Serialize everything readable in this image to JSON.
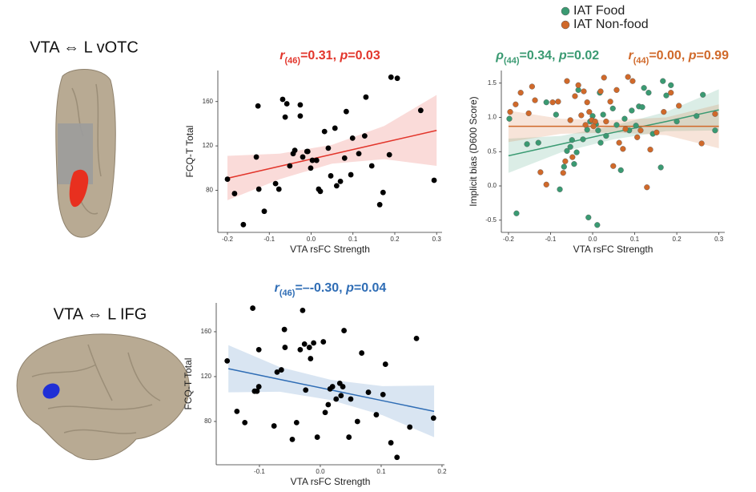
{
  "row_labels": [
    "VTA ⇔ L vOTC",
    "VTA ⇔ L IFG"
  ],
  "chart_data": [
    {
      "type": "scatter",
      "titles": [
        {
          "color": "#e2352b",
          "parts": [
            "r",
            "(46)",
            "=0.31, ",
            "p",
            "=0.03"
          ]
        }
      ],
      "x_label": "VTA rsFC Strength",
      "y_label": "FCQ-T Total",
      "xlim": [
        -0.223,
        0.313
      ],
      "ylim": [
        42,
        188
      ],
      "xticks": [
        -0.2,
        -0.1,
        {
          "value": 0,
          "label": "0.0"
        },
        0.1,
        0.2,
        0.3
      ],
      "yticks": [
        80,
        120,
        160
      ],
      "grid": false,
      "series": [
        {
          "color": "#000000",
          "x": [
            -0.2,
            -0.183,
            -0.162,
            -0.131,
            -0.127,
            -0.125,
            -0.112,
            -0.085,
            -0.077,
            -0.068,
            -0.062,
            -0.058,
            -0.051,
            -0.043,
            -0.039,
            -0.026,
            -0.026,
            -0.02,
            -0.01,
            -0.008,
            -0.001,
            0.003,
            0.013,
            0.018,
            0.022,
            0.032,
            0.041,
            0.047,
            0.057,
            0.061,
            0.07,
            0.08,
            0.084,
            0.095,
            0.099,
            0.114,
            0.128,
            0.131,
            0.145,
            0.164,
            0.172,
            0.187,
            0.191,
            0.206,
            0.262,
            0.294
          ],
          "values": [
            90,
            77,
            49,
            110,
            156,
            81,
            61,
            86,
            81,
            162,
            146,
            158,
            102,
            113,
            116,
            157,
            147,
            110,
            115,
            115,
            100,
            107,
            107,
            81,
            79,
            133,
            118,
            93,
            136,
            84,
            88,
            109,
            151,
            94,
            127,
            113,
            129,
            164,
            102,
            67,
            78,
            112,
            182,
            181,
            152,
            89
          ],
          "fit": {
            "x": [
              -0.2,
              -0.075,
              0.05,
              0.175,
              0.3
            ],
            "values": [
              90.8,
              101.6,
              112.4,
              123.2,
              134
            ],
            "ci_lower": [
              71,
              90,
              104,
              108,
              102
            ],
            "ci_upper": [
              111,
              113,
              121,
              138,
              166
            ]
          }
        }
      ]
    },
    {
      "type": "scatter",
      "titles": [
        {
          "color": "#2f6db5",
          "parts": [
            "r",
            "(46)",
            "=–-0.30, ",
            "p",
            "=0.04"
          ]
        }
      ],
      "x_label": "VTA rsFC Strength",
      "y_label": "FCQ-T Total",
      "xlim": [
        -0.171,
        0.204
      ],
      "ylim": [
        41.4,
        185.7
      ],
      "xticks": [
        -0.1,
        {
          "value": 0,
          "label": "0.0"
        },
        0.1,
        0.2
      ],
      "yticks": [
        80,
        120,
        160
      ],
      "grid": false,
      "series": [
        {
          "color": "#000000",
          "x": [
            -0.153,
            -0.137,
            -0.124,
            -0.111,
            -0.108,
            -0.104,
            -0.101,
            -0.101,
            -0.076,
            -0.071,
            -0.064,
            -0.059,
            -0.058,
            -0.046,
            -0.039,
            -0.033,
            -0.029,
            -0.026,
            -0.024,
            -0.018,
            -0.016,
            -0.011,
            -0.005,
            0.005,
            0.008,
            0.013,
            0.016,
            0.02,
            0.026,
            0.032,
            0.034,
            0.037,
            0.039,
            0.047,
            0.05,
            0.061,
            0.068,
            0.079,
            0.092,
            0.103,
            0.107,
            0.116,
            0.126,
            0.147,
            0.158,
            0.186
          ],
          "values": [
            134,
            89,
            79,
            181,
            107,
            107,
            111,
            144,
            76,
            124,
            126,
            162,
            146,
            64,
            79,
            144,
            179,
            149,
            108,
            146,
            136,
            150,
            66,
            151,
            88,
            95,
            109,
            111,
            100,
            114,
            103,
            111,
            161,
            66,
            100,
            80,
            141,
            106,
            86,
            104,
            131,
            61,
            48,
            75,
            154,
            83
          ],
          "fit": {
            "x": [
              -0.151,
              -0.0665,
              0.018,
              0.1025,
              0.187
            ],
            "values": [
              127,
              117.5,
              108,
              98.5,
              89
            ],
            "ci_lower": [
              106,
              106.5,
              99,
              85.5,
              66
            ],
            "ci_upper": [
              148,
              128.5,
              117,
              111.5,
              112
            ]
          }
        }
      ]
    },
    {
      "type": "scatter",
      "titles": [
        {
          "color": "#3a9a72",
          "parts": [
            "ρ",
            "(44)",
            "=0.34, ",
            "p",
            "=0.02"
          ]
        },
        {
          "color": "#d0692a",
          "parts": [
            "r",
            "(44)",
            "=0.00, ",
            "p",
            "=0.99"
          ]
        }
      ],
      "x_label": "VTA rsFC Strength",
      "y_label": "Implicit bias (D600 Score)",
      "xlim": [
        -0.217,
        0.314
      ],
      "ylim": [
        -0.678,
        1.684
      ],
      "xticks": [
        -0.2,
        -0.1,
        {
          "value": 0,
          "label": "0.0"
        },
        0.1,
        0.2,
        0.3
      ],
      "yticks": [
        -0.5,
        {
          "value": 0,
          "label": "0.0"
        },
        0.5,
        {
          "value": 1,
          "label": "1.0"
        },
        1.5
      ],
      "grid": false,
      "legend": "top",
      "series": [
        {
          "name": "IAT Food",
          "color": "#3a9a72",
          "x": [
            -0.198,
            -0.181,
            -0.156,
            -0.129,
            -0.11,
            -0.087,
            -0.078,
            -0.068,
            -0.061,
            -0.053,
            -0.049,
            -0.044,
            -0.038,
            -0.034,
            -0.023,
            -0.013,
            -0.01,
            -0.006,
            0,
            0.008,
            0.011,
            0.013,
            0.017,
            0.019,
            0.025,
            0.032,
            0.048,
            0.057,
            0.067,
            0.076,
            0.087,
            0.093,
            0.103,
            0.11,
            0.118,
            0.122,
            0.133,
            0.143,
            0.162,
            0.167,
            0.175,
            0.186,
            0.2,
            0.247,
            0.262,
            0.291
          ],
          "values": [
            0.98,
            -0.4,
            0.61,
            0.63,
            1.22,
            1.04,
            -0.05,
            0.28,
            0.51,
            0.57,
            0.67,
            0.32,
            0.49,
            1.4,
            0.68,
            0.82,
            -0.46,
            0.94,
            1.02,
            0.9,
            -0.57,
            0.81,
            1.36,
            0.63,
            1.04,
            0.73,
            1.13,
            0.89,
            0.23,
            0.98,
            0.81,
            1.1,
            0.88,
            1.16,
            1.15,
            1.43,
            1.36,
            0.76,
            0.27,
            1.53,
            1.32,
            1.47,
            0.94,
            1.02,
            1.33,
            0.81
          ],
          "fit": {
            "x": [
              -0.2,
              -0.075,
              0.05,
              0.175,
              0.3
            ],
            "values": [
              0.44,
              0.61,
              0.78,
              0.94,
              1.11
            ],
            "ci_lower": [
              0.19,
              0.49,
              0.68,
              0.8,
              0.81
            ],
            "ci_upper": [
              0.69,
              0.73,
              0.88,
              1.08,
              1.41
            ]
          }
        },
        {
          "name": "IAT Non-food",
          "color": "#d0692a",
          "x": [
            -0.196,
            -0.183,
            -0.171,
            -0.152,
            -0.144,
            -0.137,
            -0.124,
            -0.11,
            -0.095,
            -0.082,
            -0.07,
            -0.065,
            -0.061,
            -0.053,
            -0.048,
            -0.042,
            -0.034,
            -0.027,
            -0.021,
            -0.017,
            -0.013,
            -0.008,
            -0.002,
            0.002,
            0.006,
            0.019,
            0.027,
            0.032,
            0.042,
            0.049,
            0.057,
            0.063,
            0.072,
            0.078,
            0.084,
            0.095,
            0.106,
            0.114,
            0.129,
            0.137,
            0.152,
            0.169,
            0.186,
            0.205,
            0.259,
            0.291
          ],
          "values": [
            1.08,
            1.19,
            1.36,
            1.06,
            1.45,
            1.25,
            0.2,
            0.02,
            1.22,
            1.23,
            0.19,
            0.36,
            1.53,
            0.96,
            0.42,
            1.31,
            1.47,
            1.03,
            1.38,
            0.89,
            1.22,
            1.08,
            0.96,
            0.87,
            0.94,
            1.38,
            1.58,
            0.94,
            1.23,
            0.29,
            1.4,
            0.63,
            0.54,
            0.83,
            1.59,
            1.53,
            0.71,
            0.81,
            -0.02,
            0.53,
            0.78,
            1.08,
            1.36,
            1.17,
            0.62,
            1.05
          ],
          "fit": {
            "x": [
              -0.2,
              -0.075,
              0.05,
              0.175,
              0.3
            ],
            "values": [
              0.87,
              0.87,
              0.87,
              0.87,
              0.87
            ],
            "ci_lower": [
              0.64,
              0.76,
              0.78,
              0.74,
              0.55
            ],
            "ci_upper": [
              1.1,
              0.98,
              0.96,
              1.0,
              1.19
            ]
          }
        }
      ]
    }
  ]
}
